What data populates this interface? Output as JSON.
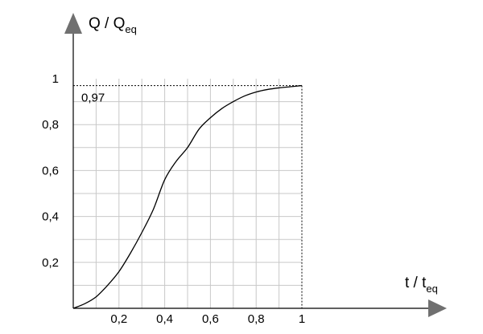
{
  "chart_data": {
    "type": "line",
    "xlabel": {
      "main": "t / t",
      "sub": "eq"
    },
    "ylabel": {
      "main": "Q / Q",
      "sub": "eq"
    },
    "xlim": [
      0,
      1
    ],
    "ylim": [
      0,
      1
    ],
    "grid": true,
    "x_ticks": [
      {
        "value": 0.2,
        "label": "0,2"
      },
      {
        "value": 0.4,
        "label": "0,4"
      },
      {
        "value": 0.6,
        "label": "0,6"
      },
      {
        "value": 0.8,
        "label": "0,8"
      },
      {
        "value": 1.0,
        "label": "1"
      }
    ],
    "y_ticks": [
      {
        "value": 0.2,
        "label": "0,2"
      },
      {
        "value": 0.4,
        "label": "0,4"
      },
      {
        "value": 0.6,
        "label": "0,6"
      },
      {
        "value": 0.8,
        "label": "0,8"
      },
      {
        "value": 1.0,
        "label": "1"
      }
    ],
    "series": [
      {
        "x": [
          0,
          0.05,
          0.1,
          0.15,
          0.2,
          0.25,
          0.3,
          0.35,
          0.4,
          0.45,
          0.5,
          0.55,
          0.6,
          0.65,
          0.7,
          0.75,
          0.8,
          0.85,
          0.9,
          0.95,
          1.0
        ],
        "y": [
          0,
          0.02,
          0.05,
          0.1,
          0.16,
          0.24,
          0.33,
          0.43,
          0.56,
          0.64,
          0.7,
          0.78,
          0.83,
          0.87,
          0.9,
          0.925,
          0.942,
          0.953,
          0.96,
          0.965,
          0.97
        ]
      }
    ],
    "annotations": [
      {
        "label": "0,97",
        "x": 1.0,
        "y": 0.97
      }
    ]
  }
}
